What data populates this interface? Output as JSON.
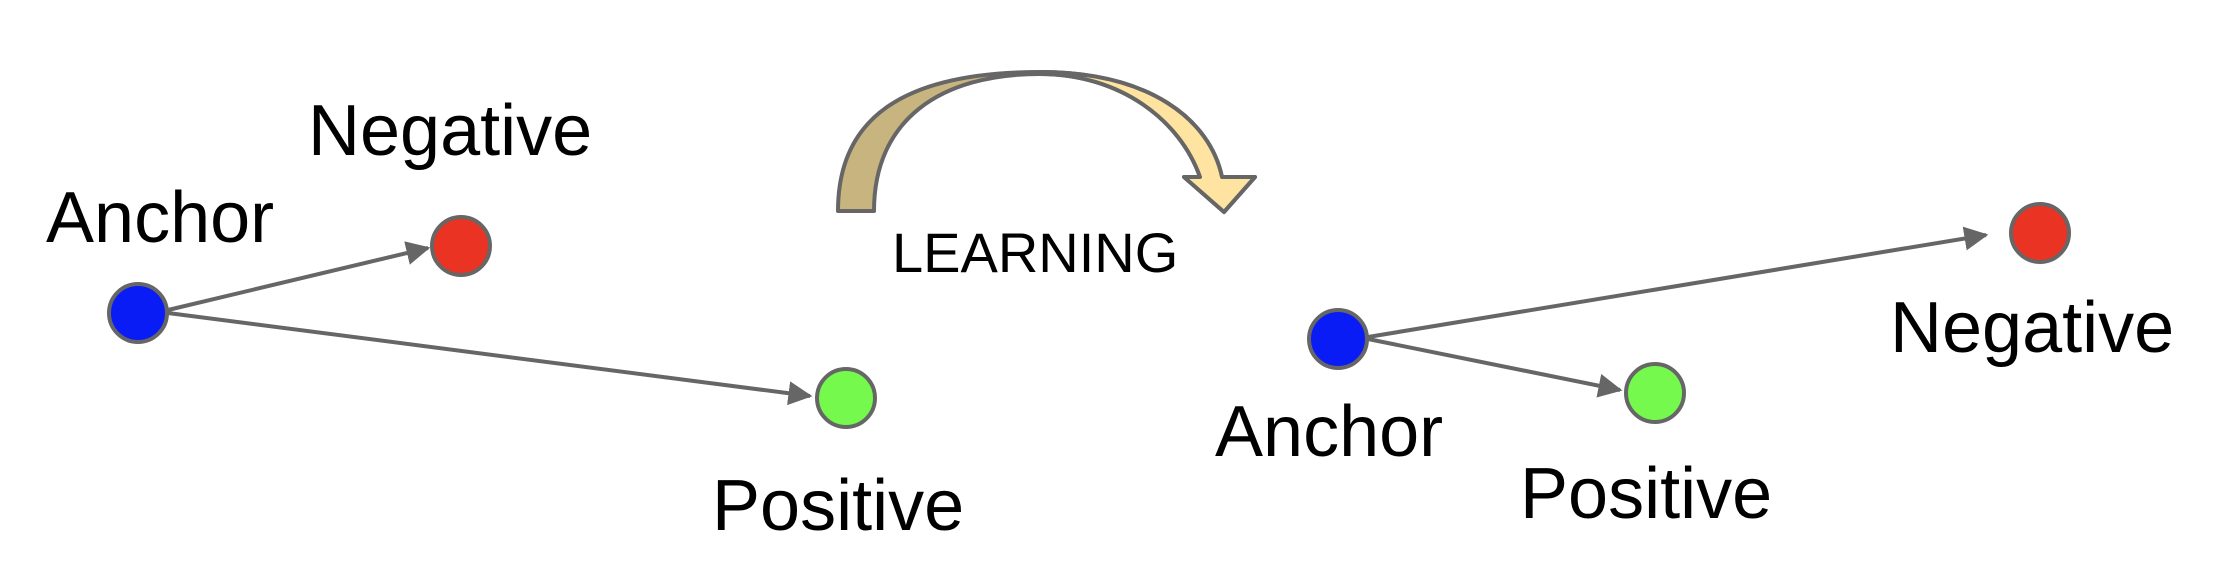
{
  "before": {
    "anchor_label": "Anchor",
    "negative_label": "Negative",
    "positive_label": "Positive"
  },
  "transition": {
    "label": "LEARNING"
  },
  "after": {
    "anchor_label": "Anchor",
    "negative_label": "Negative",
    "positive_label": "Positive"
  },
  "colors": {
    "anchor": "#0a1cf5",
    "negative": "#ea3323",
    "positive": "#75f94c",
    "edge": "#666666",
    "arrow_fill_top": "#ffe3a0",
    "arrow_fill_side": "#c8b47e"
  }
}
